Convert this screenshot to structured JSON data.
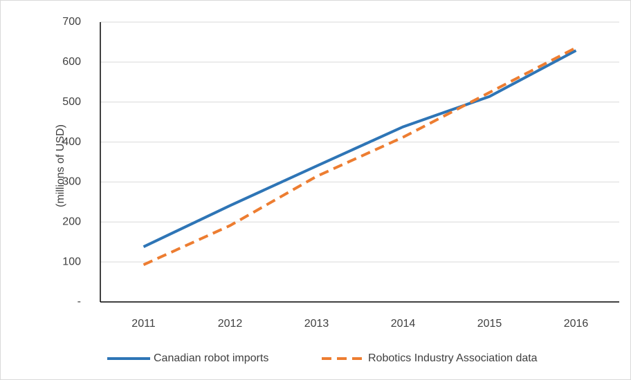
{
  "chart_data": {
    "type": "line",
    "ylabel": "(millions of USD)",
    "categories": [
      "2011",
      "2012",
      "2013",
      "2014",
      "2015",
      "2016"
    ],
    "series": [
      {
        "name": "Canadian robot imports",
        "color": "#2e75b6",
        "dash": "solid",
        "values": [
          138,
          241,
          340,
          438,
          514,
          629
        ]
      },
      {
        "name": "Robotics Industry Association data",
        "color": "#ed7d31",
        "dash": "dashed",
        "values": [
          93,
          191,
          314,
          412,
          524,
          636
        ]
      }
    ],
    "ylim": [
      0,
      700
    ],
    "yticks": [
      {
        "value": 0,
        "label": "-"
      },
      100,
      200,
      300,
      400,
      500,
      600,
      700
    ],
    "grid": true,
    "legend": "bottom"
  }
}
